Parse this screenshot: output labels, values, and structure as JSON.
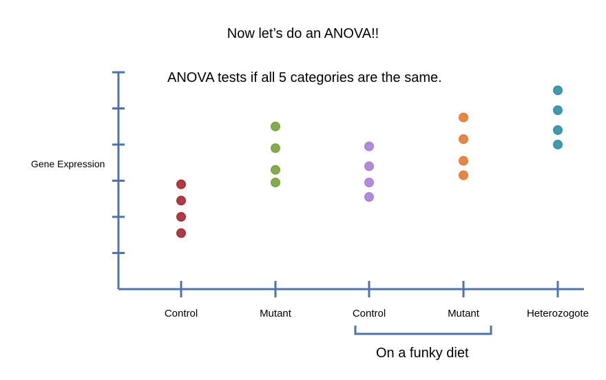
{
  "title": "Now let’s do an ANOVA!!",
  "subtitle": "ANOVA tests if all 5 categories are the same.",
  "bracket_label": "On a funky diet",
  "colors": {
    "axis": "#4a73b0",
    "bracket": "#4a73b0"
  },
  "chart_data": {
    "type": "scatter",
    "title": "",
    "ylabel": "Gene Expression",
    "xlabel": "",
    "y_tick_labels": [],
    "ylim": [
      0,
      6
    ],
    "categories": [
      "Control",
      "Mutant",
      "Control",
      "Mutant",
      "Heterozogote"
    ],
    "grouping": {
      "label": "On a funky diet",
      "categories": [
        2,
        3
      ]
    },
    "series": [
      {
        "category": "Control",
        "color": "#a8262e",
        "values": [
          2.9,
          2.45,
          2.0,
          1.55
        ]
      },
      {
        "category": "Mutant",
        "color": "#76a33a",
        "values": [
          4.5,
          3.9,
          3.3,
          2.95
        ]
      },
      {
        "category": "Control",
        "color": "#a87ed9",
        "values": [
          3.95,
          3.4,
          2.95,
          2.55
        ]
      },
      {
        "category": "Mutant",
        "color": "#e5792f",
        "values": [
          4.75,
          4.15,
          3.55,
          3.15
        ]
      },
      {
        "category": "Heterozogote",
        "color": "#2b8fa6",
        "values": [
          5.5,
          4.95,
          4.4,
          4.0
        ]
      }
    ]
  }
}
